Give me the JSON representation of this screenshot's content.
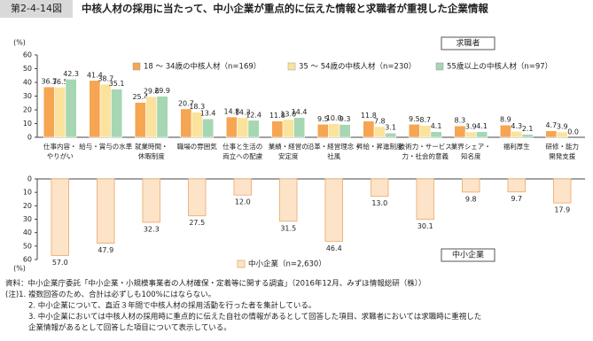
{
  "header": {
    "figure_no": "第2-4-14図",
    "title": "中核人材の採用に当たって、中小企業が重点的に伝えた情報と求職者が重視した企業情報"
  },
  "chart_data": [
    {
      "type": "bar",
      "y_label": "(%)",
      "panel_label": "求職者",
      "categories": [
        [
          "仕事内容・",
          "やりがい"
        ],
        [
          "給与・賞与の水準"
        ],
        [
          "就業時間・",
          "休暇制度"
        ],
        [
          "職場の雰囲気"
        ],
        [
          "仕事と生活の",
          "両立への配慮"
        ],
        [
          "業績・経営の",
          "安定度"
        ],
        [
          "沿革・経営理念・",
          "社風"
        ],
        [
          "昇給・昇進制度"
        ],
        [
          "技術力・サービス",
          "力・社会的意義"
        ],
        [
          "業界シェア・",
          "知名度"
        ],
        [
          "福利厚生"
        ],
        [
          "研修・能力",
          "開発支援"
        ]
      ],
      "series": [
        {
          "name": "18 ～ 34歳の中核人材（n=169）",
          "color": "#f6a552",
          "values": [
            36.7,
            41.4,
            25.4,
            20.7,
            14.8,
            11.8,
            9.5,
            11.8,
            9.5,
            8.3,
            8.9,
            4.7
          ],
          "value_labels": [
            "36.7",
            "41.4",
            "25.4",
            "20.7",
            "14.8",
            "11.8",
            "9.5",
            "11.8",
            "9.5",
            "8.3",
            "8.9",
            "4.7"
          ]
        },
        {
          "name": "35 ～ 54歳の中核人材（n=230）",
          "color": "#fbe39e",
          "values": [
            36.5,
            38.7,
            29.6,
            18.3,
            14.3,
            13.0,
            10.0,
            7.8,
            8.7,
            3.9,
            4.3,
            3.9
          ],
          "value_labels": [
            "36.5",
            "38.7",
            "29.6",
            "18.3",
            "14.3",
            "13.0",
            "10.0",
            "7.8",
            "8.7",
            "3.9",
            "4.3",
            "3.9"
          ]
        },
        {
          "name": "55歳以上の中核人材（n=97）",
          "color": "#a6d6b2",
          "values": [
            42.3,
            35.1,
            29.9,
            13.4,
            12.4,
            14.4,
            9.3,
            3.1,
            4.1,
            4.1,
            2.1,
            0.0
          ],
          "value_labels": [
            "42.3",
            "35.1",
            "29.9",
            "13.4",
            "12.4",
            "14.4",
            "9.3",
            "3.1",
            "4.1",
            "4.1",
            "2.1",
            "0.0"
          ]
        }
      ],
      "ylim": [
        0,
        60
      ],
      "yticks": [
        0,
        10,
        20,
        30,
        40,
        50,
        60
      ]
    },
    {
      "type": "bar",
      "y_label": "(%)",
      "panel_label": "中小企業",
      "inverted": true,
      "series": [
        {
          "name": "中小企業（n=2,630）",
          "color": "#fde3c8",
          "values": [
            57.0,
            47.9,
            32.3,
            27.5,
            12.0,
            31.5,
            46.4,
            13.0,
            30.1,
            9.8,
            9.7,
            17.9
          ],
          "value_labels": [
            "57.0",
            "47.9",
            "32.3",
            "27.5",
            "12.0",
            "31.5",
            "46.4",
            "13.0",
            "30.1",
            "9.8",
            "9.7",
            "17.9"
          ]
        }
      ],
      "ylim": [
        0,
        60
      ],
      "yticks": [
        0,
        10,
        20,
        30,
        40,
        50,
        60
      ]
    }
  ],
  "notes": [
    "資料：中小企業庁委託「中小企業・小規模事業者の人材確保・定着等に関する調査」（2016年12月、みずほ情報総研（株））",
    "(注)1. 複数回答のため、合計は必ずしも100%にはならない。",
    "2. 中小企業について、直近３年間で中核人材の採用活動を行った者を集計している。",
    "3. 中小企業においては中核人材の採用時に重点的に伝えた自社の情報があるとして回答した項目、求職者においては求職時に重視した",
    "企業情報があるとして回答した項目について表示している。"
  ]
}
